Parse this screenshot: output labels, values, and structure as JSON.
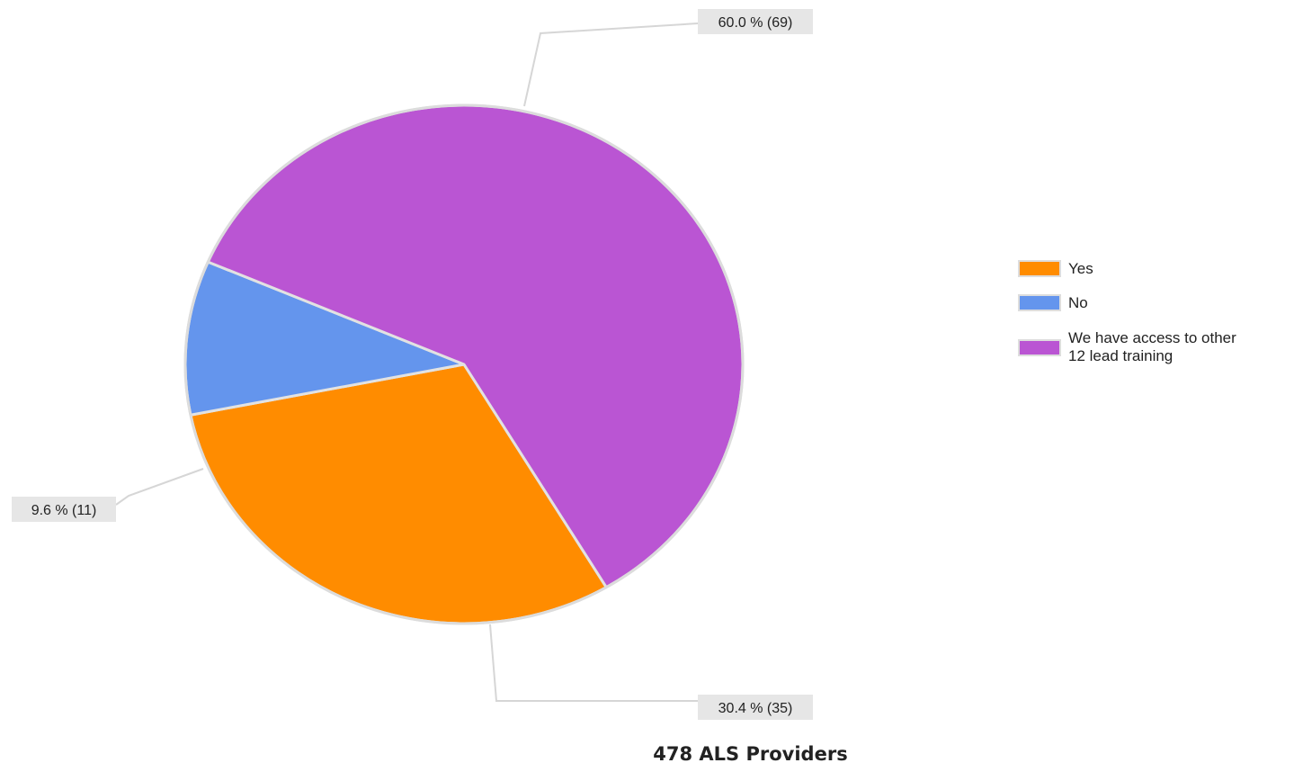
{
  "chart_data": {
    "type": "pie",
    "slices": [
      {
        "label": "Yes",
        "percent": 30.4,
        "count": 35,
        "color": "#FF8C00",
        "data_label": "30.4 % (35)"
      },
      {
        "label": "No",
        "percent": 9.6,
        "count": 11,
        "color": "#6495ED",
        "data_label": "9.6 % (11)"
      },
      {
        "label": "We have access to other 12 lead training",
        "percent": 60.0,
        "count": 69,
        "color": "#BA55D3",
        "data_label": "60.0 % (69)"
      }
    ],
    "legend": {
      "position": "right",
      "entries": [
        {
          "label_lines": [
            "Yes"
          ],
          "color": "#FF8C00"
        },
        {
          "label_lines": [
            "No"
          ],
          "color": "#6495ED"
        },
        {
          "label_lines": [
            "We have access to other",
            "12 lead training"
          ],
          "color": "#BA55D3"
        }
      ]
    },
    "caption": "478 ALS Providers"
  }
}
